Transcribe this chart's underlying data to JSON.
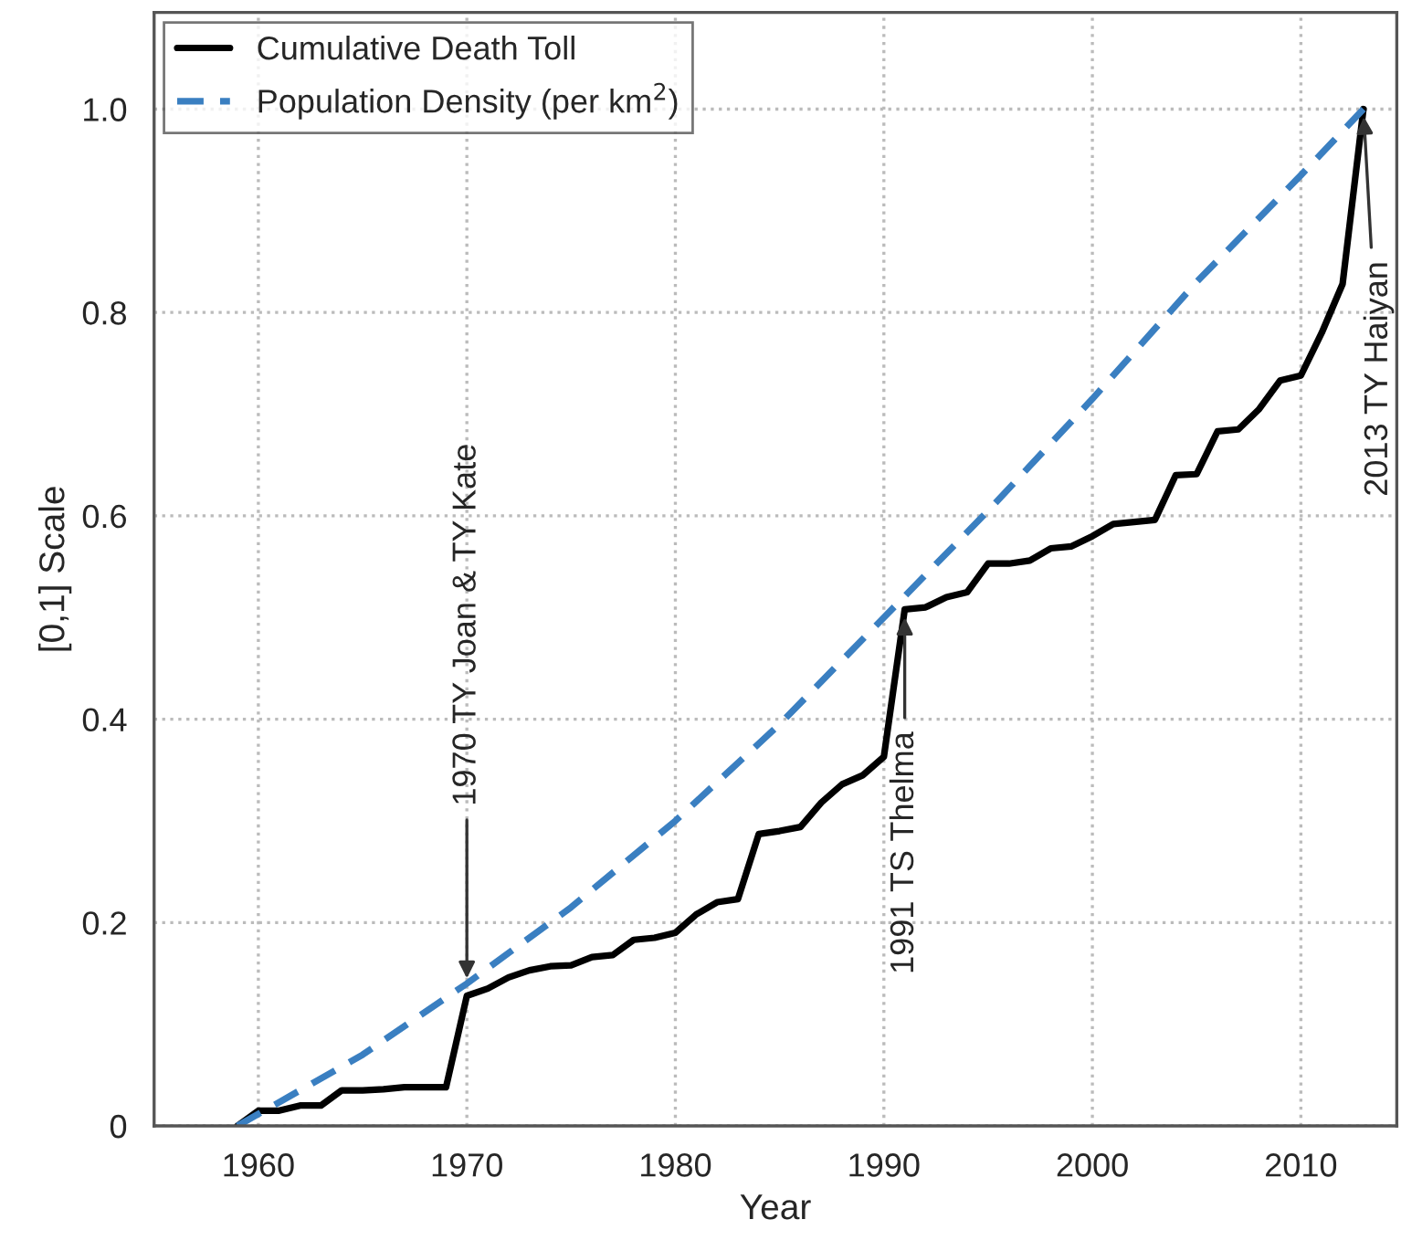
{
  "chart_data": {
    "type": "line",
    "xlabel": "Year",
    "ylabel": "[0,1] Scale",
    "xlim": [
      1955,
      2014.6
    ],
    "xticks": [
      1960,
      1970,
      1980,
      1990,
      2000,
      2010
    ],
    "ylim": [
      0,
      1.095
    ],
    "yticks": [
      0,
      0.2,
      0.4,
      0.6,
      {
        "value": 0.8,
        "label": "0.8"
      },
      {
        "value": 1.0,
        "label": "1.0"
      }
    ],
    "grid": true,
    "legend": "top left",
    "series": [
      {
        "name": "Cumulative Death Toll",
        "color": "#000000",
        "line_style": "solid",
        "x": [
          1959,
          1960,
          1961,
          1962,
          1963,
          1964,
          1965,
          1966,
          1967,
          1968,
          1969,
          1970,
          1971,
          1972,
          1973,
          1974,
          1975,
          1976,
          1977,
          1978,
          1979,
          1980,
          1981,
          1982,
          1983,
          1984,
          1985,
          1986,
          1987,
          1988,
          1989,
          1990,
          1991,
          1992,
          1993,
          1994,
          1995,
          1996,
          1997,
          1998,
          1999,
          2000,
          2001,
          2002,
          2003,
          2004,
          2005,
          2006,
          2007,
          2008,
          2009,
          2010,
          2011,
          2012,
          2013
        ],
        "values": [
          0,
          0.015,
          0.015,
          0.02,
          0.02,
          0.035,
          0.035,
          0.036,
          0.038,
          0.038,
          0.038,
          0.128,
          0.135,
          0.146,
          0.153,
          0.157,
          0.158,
          0.166,
          0.168,
          0.183,
          0.185,
          0.19,
          0.208,
          0.22,
          0.223,
          0.287,
          0.29,
          0.294,
          0.318,
          0.336,
          0.345,
          0.363,
          0.508,
          0.51,
          0.52,
          0.525,
          0.553,
          0.553,
          0.556,
          0.568,
          0.57,
          0.58,
          0.592,
          0.594,
          0.596,
          0.64,
          0.641,
          0.683,
          0.685,
          0.705,
          0.733,
          0.738,
          0.78,
          0.828,
          1.0
        ]
      },
      {
        "name": "Population Density (per km$^{2}$)",
        "color": "#3a7fc1",
        "line_style": "dashed",
        "x": [
          1959,
          1965,
          1970,
          1975,
          1980,
          1985,
          1990,
          1995,
          2000,
          2005,
          2010,
          2013
        ],
        "values": [
          0,
          0.07,
          0.14,
          0.215,
          0.3,
          0.395,
          0.5,
          0.605,
          0.715,
          0.83,
          0.935,
          1.0
        ]
      }
    ],
    "annotations": [
      {
        "text": "1970 TY Joan & TY Kate",
        "x": 1970,
        "y": 0.14
      },
      {
        "text": "1991 TS Thelma",
        "x": 1991,
        "y": 0.5
      },
      {
        "text": "2013 TY Haiyan",
        "x": 2013,
        "y": 1.0
      }
    ]
  }
}
